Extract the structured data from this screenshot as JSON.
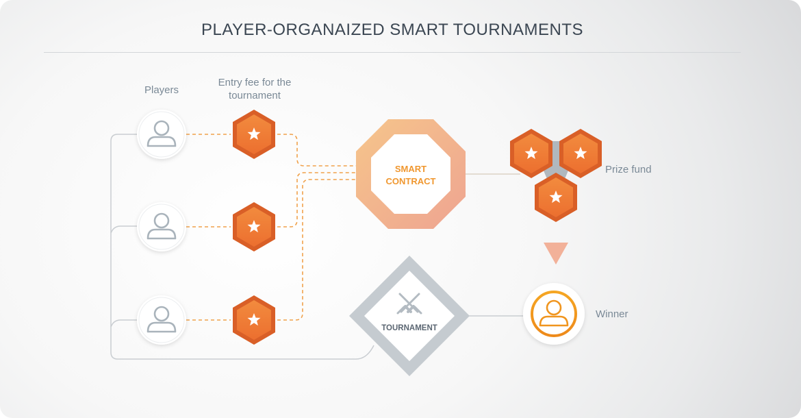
{
  "title": "PLAYER-ORGANAIZED SMART TOURNAMENTS",
  "labels": {
    "players": "Players",
    "entry_fee_line1": "Entry fee for the",
    "entry_fee_line2": "tournament",
    "prize_fund": "Prize fund",
    "winner": "Winner"
  },
  "nodes": {
    "smart_contract_line1": "SMART",
    "smart_contract_line2": "CONTRACT",
    "tournament": "TOURNAMENT"
  },
  "icons": {
    "player": "user-icon",
    "coin": "star-coin-icon",
    "tournament": "crossed-swords-icon",
    "arrow": "down-triangle-icon"
  },
  "colors": {
    "orange": "#ef7a35",
    "orange_dark": "#d95f27",
    "dashed_line": "#f0a14b",
    "gray_line": "#c9cdd1",
    "text_gray": "#7a8996",
    "title": "#3b4652",
    "smart_contract_text": "#f0972f",
    "winner_ring": "#f19a1e"
  }
}
